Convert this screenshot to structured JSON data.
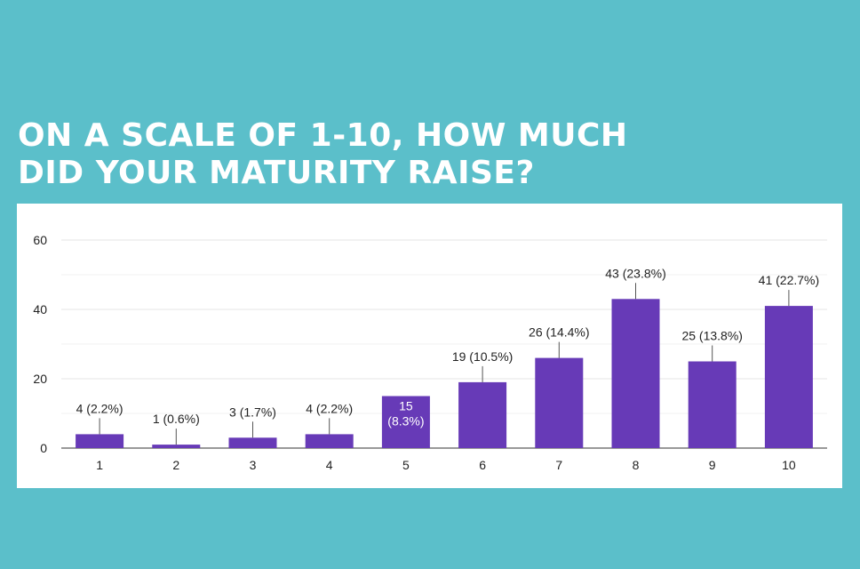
{
  "headline": {
    "line1": "ON A SCALE OF 1-10, HOW MUCH",
    "line2": "DID YOUR MATURITY RAISE?"
  },
  "colors": {
    "background": "#5bbfca",
    "bar": "#673ab7",
    "headline_text": "#ffffff"
  },
  "chart_data": {
    "type": "bar",
    "title": "",
    "xlabel": "",
    "ylabel": "",
    "categories": [
      "1",
      "2",
      "3",
      "4",
      "5",
      "6",
      "7",
      "8",
      "9",
      "10"
    ],
    "values": [
      4,
      1,
      3,
      4,
      15,
      19,
      26,
      43,
      25,
      41
    ],
    "labels": [
      "4 (2.2%)",
      "1 (0.6%)",
      "3 (1.7%)",
      "4 (2.2%)",
      "15 (8.3%)",
      "19 (10.5%)",
      "26 (14.4%)",
      "43 (23.8%)",
      "25 (13.8%)",
      "41 (22.7%)"
    ],
    "yticks": [
      0,
      20,
      40,
      60
    ],
    "ylim": [
      0,
      60
    ],
    "grid": true,
    "legend": "none"
  }
}
